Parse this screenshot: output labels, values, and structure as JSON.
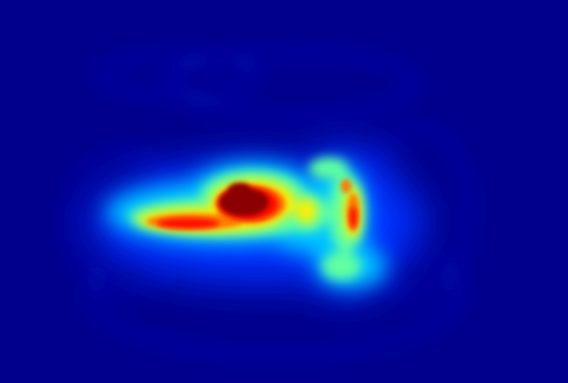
{
  "image": {
    "kind": "heatmap",
    "colormap": "jet",
    "background_color": "#00008c",
    "colormap_stops": [
      "#00008c",
      "#0000ff",
      "#00aaff",
      "#00ffff",
      "#7dff7d",
      "#ffff00",
      "#ff8000",
      "#ff0000",
      "#8b0000"
    ]
  }
}
